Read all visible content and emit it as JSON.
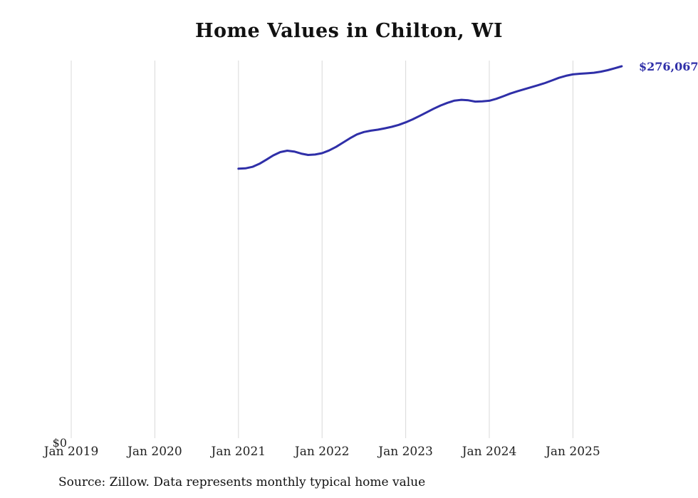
{
  "chart_data": {
    "type": "line",
    "title": "Home Values in Chilton, WI",
    "source": "Source: Zillow. Data represents monthly typical home value",
    "y_zero_label": "$0",
    "end_label": "$276,067",
    "end_value": 276067,
    "line_color": "#2f2fa8",
    "grid_color": "#d8d8d8",
    "grid": "vertical",
    "legend": "none",
    "ylim": [
      0,
      276067
    ],
    "x_tick_labels": [
      "Jan 2019",
      "Jan 2020",
      "Jan 2021",
      "Jan 2022",
      "Jan 2023",
      "Jan 2024",
      "Jan 2025"
    ],
    "series": [
      {
        "name": "Monthly typical home value",
        "x": [
          "2021-01",
          "2021-02",
          "2021-03",
          "2021-04",
          "2021-05",
          "2021-06",
          "2021-07",
          "2021-08",
          "2021-09",
          "2021-10",
          "2021-11",
          "2021-12",
          "2022-01",
          "2022-02",
          "2022-03",
          "2022-04",
          "2022-05",
          "2022-06",
          "2022-07",
          "2022-08",
          "2022-09",
          "2022-10",
          "2022-11",
          "2022-12",
          "2023-01",
          "2023-02",
          "2023-03",
          "2023-04",
          "2023-05",
          "2023-06",
          "2023-07",
          "2023-08",
          "2023-09",
          "2023-10",
          "2023-11",
          "2023-12",
          "2024-01",
          "2024-02",
          "2024-03",
          "2024-04",
          "2024-05",
          "2024-06",
          "2024-07",
          "2024-08",
          "2024-09",
          "2024-10",
          "2024-11",
          "2024-12",
          "2025-01",
          "2025-02",
          "2025-03",
          "2025-04",
          "2025-05",
          "2025-06",
          "2025-07",
          "2025-08"
        ],
        "values": [
          201000,
          201300,
          202400,
          204600,
          207600,
          210800,
          213200,
          214200,
          213600,
          212100,
          211100,
          211400,
          212400,
          214400,
          217000,
          220200,
          223300,
          226100,
          227900,
          228900,
          229600,
          230600,
          231700,
          233100,
          235000,
          237200,
          239700,
          242300,
          244900,
          247300,
          249300,
          250900,
          251500,
          251100,
          250200,
          250400,
          250800,
          252200,
          254100,
          256100,
          257700,
          259200,
          260700,
          262200,
          263800,
          265700,
          267600,
          269100,
          270100,
          270600,
          270900,
          271300,
          272100,
          273200,
          274600,
          276067
        ]
      }
    ]
  }
}
